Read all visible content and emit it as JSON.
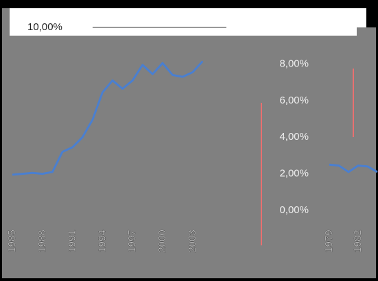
{
  "chart_data": [
    {
      "type": "line",
      "categories": [
        "1985",
        null,
        null,
        "1988",
        null,
        null,
        "1991",
        null,
        null,
        "1994",
        null,
        null,
        "1997",
        null,
        null,
        "2000",
        null,
        null,
        "2003",
        null
      ],
      "series": [
        {
          "color": "#4a7fd0",
          "values": [
            1.95,
            2.0,
            2.05,
            2.0,
            2.1,
            3.2,
            3.45,
            4.0,
            4.95,
            6.45,
            7.1,
            6.65,
            7.1,
            7.95,
            7.45,
            8.05,
            7.4,
            7.3,
            7.55,
            8.15
          ]
        }
      ],
      "ylim": [
        0,
        10
      ],
      "yticks": [
        {
          "value": 10,
          "label": "10,00%"
        }
      ],
      "grid": true
    },
    {
      "type": "line",
      "categories": [
        "1979",
        null,
        null,
        "1982",
        null,
        null
      ],
      "series": [
        {
          "color": "#4a7fd0",
          "values": [
            2.5,
            2.45,
            2.1,
            2.45,
            2.4,
            2.1
          ]
        }
      ],
      "ylim": [
        0,
        10
      ],
      "yticks": [
        {
          "value": 0,
          "label": "0,00%"
        },
        {
          "value": 2,
          "label": "2,00%"
        },
        {
          "value": 4,
          "label": "4,00%"
        },
        {
          "value": 6,
          "label": "6,00%"
        },
        {
          "value": 8,
          "label": "8,00%"
        }
      ],
      "grid": false
    }
  ]
}
